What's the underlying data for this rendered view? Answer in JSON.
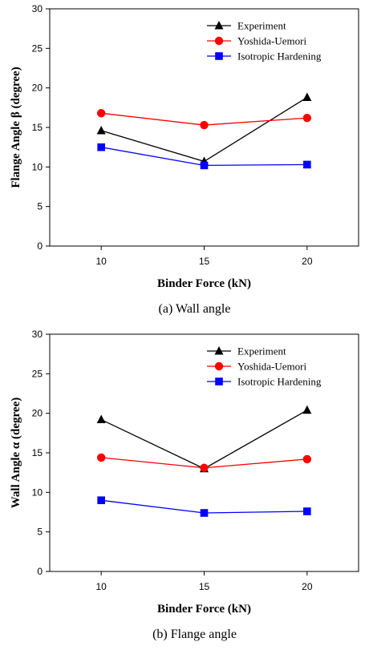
{
  "chart_data": [
    {
      "type": "line",
      "caption": "(a) Wall angle",
      "xlabel": "Binder Force (kN)",
      "ylabel": "Flange Angle β (degree)",
      "x": [
        10,
        15,
        20
      ],
      "x_ticks": [
        "10",
        "15",
        "20"
      ],
      "xlim": [
        7.5,
        22.5
      ],
      "ylim": [
        0,
        30
      ],
      "y_ticks": [
        "0",
        "5",
        "10",
        "15",
        "20",
        "25",
        "30"
      ],
      "grid": false,
      "legend_position": "top-right",
      "series": [
        {
          "name": "Experiment",
          "values": [
            14.6,
            10.7,
            18.8
          ],
          "color": "#000000",
          "marker": "triangle"
        },
        {
          "name": "Yoshida-Uemori",
          "values": [
            16.8,
            15.3,
            16.2
          ],
          "color": "#ff0000",
          "marker": "circle"
        },
        {
          "name": "Isotropic Hardening",
          "values": [
            12.5,
            10.2,
            10.3
          ],
          "color": "#0000ff",
          "marker": "square"
        }
      ]
    },
    {
      "type": "line",
      "caption": "(b) Flange angle",
      "xlabel": "Binder Force (kN)",
      "ylabel": "Wall Angle α (degree)",
      "x": [
        10,
        15,
        20
      ],
      "x_ticks": [
        "10",
        "15",
        "20"
      ],
      "xlim": [
        7.5,
        22.5
      ],
      "ylim": [
        0,
        30
      ],
      "y_ticks": [
        "0",
        "5",
        "10",
        "15",
        "20",
        "25",
        "30"
      ],
      "grid": false,
      "legend_position": "top-right",
      "series": [
        {
          "name": "Experiment",
          "values": [
            19.2,
            13.0,
            20.4
          ],
          "color": "#000000",
          "marker": "triangle"
        },
        {
          "name": "Yoshida-Uemori",
          "values": [
            14.4,
            13.1,
            14.2
          ],
          "color": "#ff0000",
          "marker": "circle"
        },
        {
          "name": "Isotropic Hardening",
          "values": [
            9.0,
            7.4,
            7.6
          ],
          "color": "#0000ff",
          "marker": "square"
        }
      ]
    }
  ]
}
